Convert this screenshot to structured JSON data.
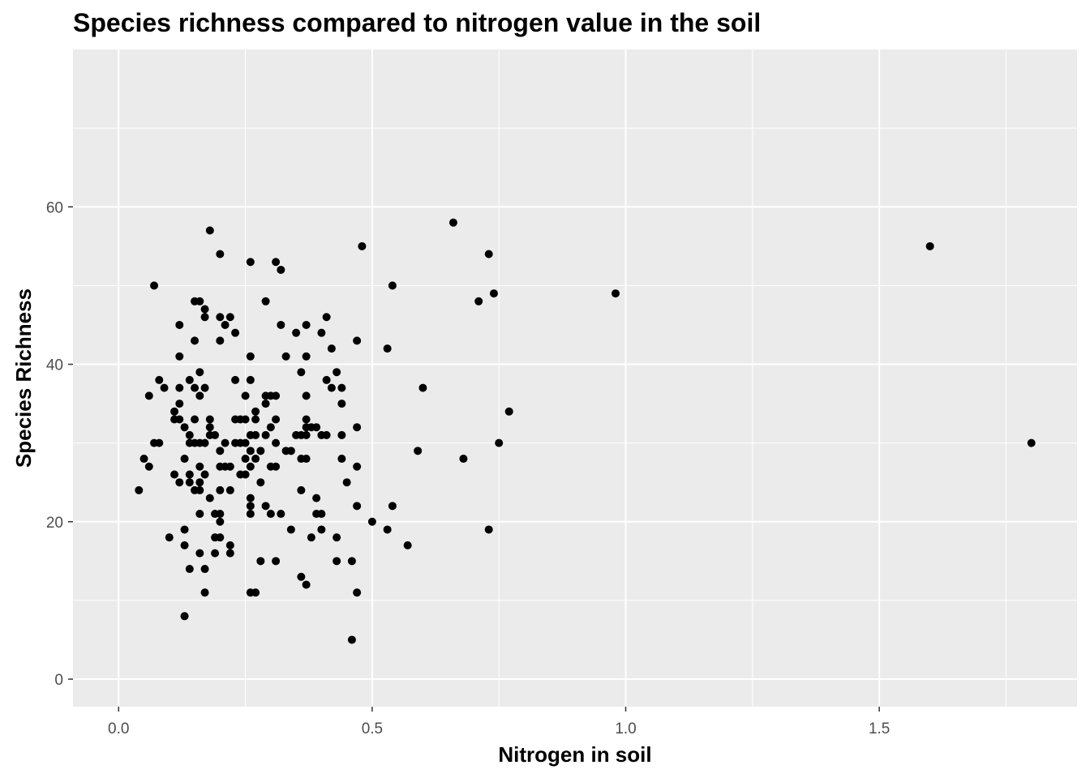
{
  "chart_data": {
    "type": "scatter",
    "title": "Species richness compared to nitrogen value in the soil",
    "xlabel": "Nitrogen in soil",
    "ylabel": "Species Richness",
    "xlim": [
      -0.09,
      1.89
    ],
    "ylim": [
      -3.5,
      80
    ],
    "x_ticks": [
      0.0,
      0.5,
      1.0,
      1.5
    ],
    "x_tick_labels": [
      "0.0",
      "0.5",
      "1.0",
      "1.5"
    ],
    "y_ticks": [
      0,
      20,
      40,
      60
    ],
    "y_tick_labels": [
      "0",
      "20",
      "40",
      "60"
    ],
    "grid": true,
    "background": "#ebebeb",
    "point_color": "#000000",
    "points": [
      [
        0.04,
        24
      ],
      [
        0.05,
        28
      ],
      [
        0.06,
        27
      ],
      [
        0.06,
        36
      ],
      [
        0.07,
        30
      ],
      [
        0.07,
        50
      ],
      [
        0.08,
        38
      ],
      [
        0.08,
        30
      ],
      [
        0.09,
        37
      ],
      [
        0.1,
        18
      ],
      [
        0.11,
        26
      ],
      [
        0.11,
        34
      ],
      [
        0.11,
        33
      ],
      [
        0.12,
        33
      ],
      [
        0.12,
        45
      ],
      [
        0.12,
        41
      ],
      [
        0.12,
        37
      ],
      [
        0.12,
        35
      ],
      [
        0.12,
        25
      ],
      [
        0.13,
        32
      ],
      [
        0.13,
        28
      ],
      [
        0.13,
        17
      ],
      [
        0.13,
        19
      ],
      [
        0.13,
        8
      ],
      [
        0.14,
        38
      ],
      [
        0.14,
        31
      ],
      [
        0.14,
        30
      ],
      [
        0.14,
        26
      ],
      [
        0.14,
        25
      ],
      [
        0.14,
        14
      ],
      [
        0.15,
        48
      ],
      [
        0.15,
        43
      ],
      [
        0.15,
        37
      ],
      [
        0.15,
        33
      ],
      [
        0.15,
        30
      ],
      [
        0.15,
        24
      ],
      [
        0.16,
        48
      ],
      [
        0.16,
        39
      ],
      [
        0.16,
        36
      ],
      [
        0.16,
        30
      ],
      [
        0.16,
        27
      ],
      [
        0.16,
        25
      ],
      [
        0.16,
        24
      ],
      [
        0.16,
        21
      ],
      [
        0.16,
        16
      ],
      [
        0.17,
        47
      ],
      [
        0.17,
        46
      ],
      [
        0.17,
        37
      ],
      [
        0.17,
        30
      ],
      [
        0.17,
        26
      ],
      [
        0.17,
        14
      ],
      [
        0.17,
        11
      ],
      [
        0.18,
        57
      ],
      [
        0.18,
        33
      ],
      [
        0.18,
        32
      ],
      [
        0.18,
        31
      ],
      [
        0.18,
        23
      ],
      [
        0.19,
        31
      ],
      [
        0.19,
        21
      ],
      [
        0.19,
        18
      ],
      [
        0.19,
        16
      ],
      [
        0.2,
        54
      ],
      [
        0.2,
        46
      ],
      [
        0.2,
        43
      ],
      [
        0.2,
        29
      ],
      [
        0.2,
        27
      ],
      [
        0.2,
        24
      ],
      [
        0.2,
        21
      ],
      [
        0.2,
        20
      ],
      [
        0.2,
        18
      ],
      [
        0.21,
        45
      ],
      [
        0.21,
        30
      ],
      [
        0.21,
        27
      ],
      [
        0.22,
        46
      ],
      [
        0.22,
        27
      ],
      [
        0.22,
        24
      ],
      [
        0.22,
        17
      ],
      [
        0.22,
        16
      ],
      [
        0.23,
        44
      ],
      [
        0.23,
        38
      ],
      [
        0.23,
        33
      ],
      [
        0.23,
        30
      ],
      [
        0.24,
        33
      ],
      [
        0.24,
        30
      ],
      [
        0.24,
        26
      ],
      [
        0.25,
        33
      ],
      [
        0.25,
        30
      ],
      [
        0.25,
        26
      ],
      [
        0.25,
        36
      ],
      [
        0.25,
        28
      ],
      [
        0.26,
        53
      ],
      [
        0.26,
        41
      ],
      [
        0.26,
        38
      ],
      [
        0.26,
        31
      ],
      [
        0.26,
        29
      ],
      [
        0.26,
        27
      ],
      [
        0.26,
        23
      ],
      [
        0.26,
        22
      ],
      [
        0.26,
        21
      ],
      [
        0.26,
        11
      ],
      [
        0.27,
        34
      ],
      [
        0.27,
        33
      ],
      [
        0.27,
        31
      ],
      [
        0.27,
        28
      ],
      [
        0.27,
        11
      ],
      [
        0.28,
        29
      ],
      [
        0.28,
        25
      ],
      [
        0.28,
        15
      ],
      [
        0.29,
        48
      ],
      [
        0.29,
        36
      ],
      [
        0.29,
        35
      ],
      [
        0.29,
        31
      ],
      [
        0.29,
        22
      ],
      [
        0.3,
        36
      ],
      [
        0.3,
        32
      ],
      [
        0.3,
        27
      ],
      [
        0.3,
        21
      ],
      [
        0.31,
        53
      ],
      [
        0.31,
        36
      ],
      [
        0.31,
        33
      ],
      [
        0.31,
        30
      ],
      [
        0.31,
        27
      ],
      [
        0.31,
        15
      ],
      [
        0.32,
        52
      ],
      [
        0.32,
        45
      ],
      [
        0.32,
        21
      ],
      [
        0.33,
        41
      ],
      [
        0.33,
        29
      ],
      [
        0.34,
        29
      ],
      [
        0.34,
        19
      ],
      [
        0.35,
        44
      ],
      [
        0.35,
        31
      ],
      [
        0.36,
        39
      ],
      [
        0.36,
        31
      ],
      [
        0.36,
        28
      ],
      [
        0.36,
        24
      ],
      [
        0.36,
        13
      ],
      [
        0.37,
        45
      ],
      [
        0.37,
        41
      ],
      [
        0.37,
        36
      ],
      [
        0.37,
        33
      ],
      [
        0.37,
        32
      ],
      [
        0.37,
        31
      ],
      [
        0.37,
        28
      ],
      [
        0.37,
        12
      ],
      [
        0.38,
        32
      ],
      [
        0.38,
        18
      ],
      [
        0.39,
        32
      ],
      [
        0.39,
        23
      ],
      [
        0.39,
        21
      ],
      [
        0.4,
        44
      ],
      [
        0.4,
        31
      ],
      [
        0.4,
        21
      ],
      [
        0.4,
        19
      ],
      [
        0.41,
        46
      ],
      [
        0.41,
        38
      ],
      [
        0.41,
        31
      ],
      [
        0.42,
        42
      ],
      [
        0.42,
        37
      ],
      [
        0.43,
        39
      ],
      [
        0.43,
        18
      ],
      [
        0.43,
        15
      ],
      [
        0.44,
        37
      ],
      [
        0.44,
        35
      ],
      [
        0.44,
        31
      ],
      [
        0.44,
        28
      ],
      [
        0.45,
        25
      ],
      [
        0.46,
        15
      ],
      [
        0.46,
        5
      ],
      [
        0.47,
        43
      ],
      [
        0.47,
        32
      ],
      [
        0.47,
        27
      ],
      [
        0.47,
        22
      ],
      [
        0.47,
        11
      ],
      [
        0.48,
        55
      ],
      [
        0.5,
        20
      ],
      [
        0.53,
        42
      ],
      [
        0.53,
        19
      ],
      [
        0.54,
        50
      ],
      [
        0.54,
        22
      ],
      [
        0.57,
        17
      ],
      [
        0.59,
        29
      ],
      [
        0.6,
        37
      ],
      [
        0.66,
        58
      ],
      [
        0.68,
        28
      ],
      [
        0.71,
        48
      ],
      [
        0.73,
        54
      ],
      [
        0.73,
        19
      ],
      [
        0.74,
        49
      ],
      [
        0.75,
        30
      ],
      [
        0.77,
        34
      ],
      [
        0.98,
        49
      ],
      [
        1.6,
        55
      ],
      [
        1.8,
        30
      ]
    ]
  }
}
